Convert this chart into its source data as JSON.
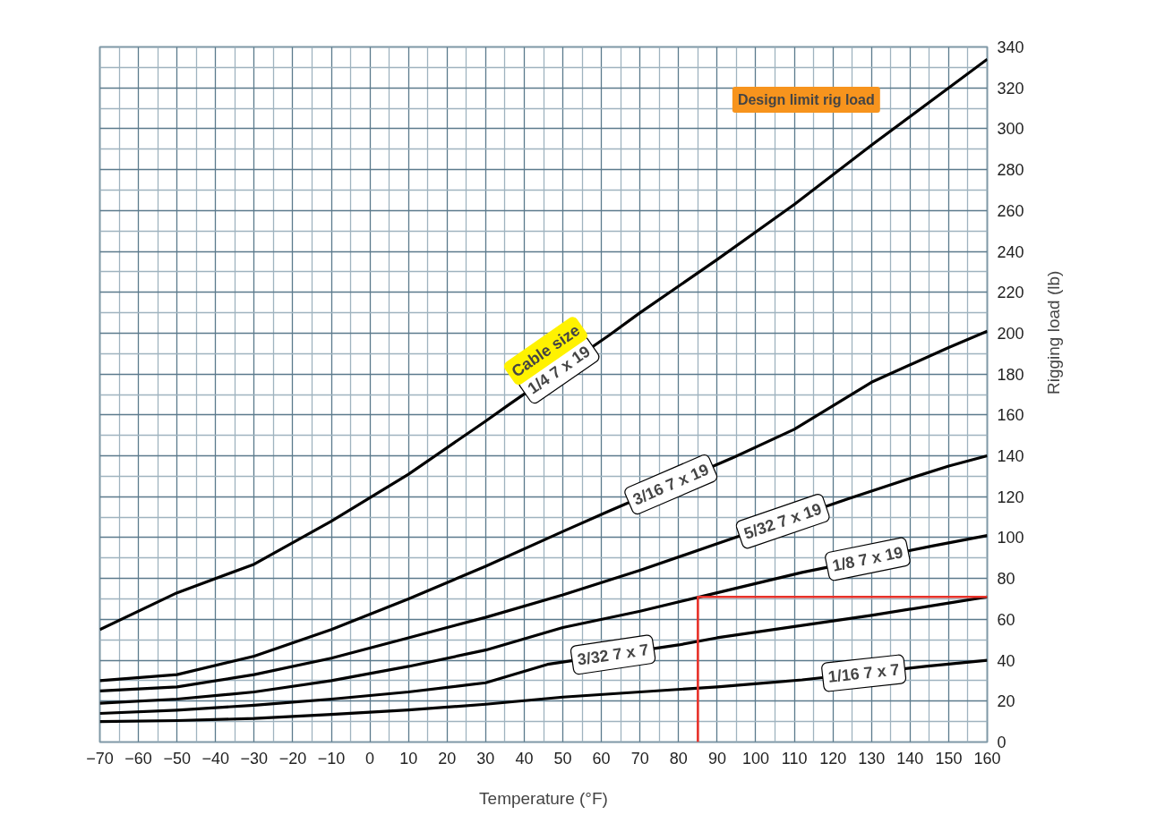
{
  "chart_data": {
    "type": "line",
    "xlabel": "Temperature (°F)",
    "ylabel": "Rigging load (lb)",
    "series": [
      {
        "name": "1/4 7 x 19",
        "color": "#000000",
        "x": [
          -70,
          -50,
          -30,
          -10,
          10,
          30,
          36,
          62,
          70,
          90,
          110,
          130,
          150,
          160
        ],
        "values": [
          55,
          73,
          87,
          108,
          131,
          157,
          165,
          199,
          210,
          236,
          263,
          292,
          320,
          334
        ]
      },
      {
        "name": "3/16 7 x 19",
        "color": "#000000",
        "x": [
          -70,
          -50,
          -30,
          -10,
          10,
          30,
          50,
          62,
          94,
          110,
          130,
          150,
          160
        ],
        "values": [
          30,
          33,
          42,
          55,
          70,
          86,
          103,
          113,
          139,
          153,
          176,
          193,
          201
        ]
      },
      {
        "name": "5/32 7 x 19",
        "color": "#000000",
        "x": [
          -70,
          -50,
          -30,
          -10,
          10,
          30,
          50,
          70,
          90,
          124,
          140,
          150,
          160
        ],
        "values": [
          25,
          27,
          33,
          41,
          51,
          61,
          72,
          84,
          97,
          119,
          129,
          135,
          140
        ]
      },
      {
        "name": "1/8 7 x 19",
        "color": "#000000",
        "x": [
          -70,
          -50,
          -30,
          -10,
          10,
          30,
          50,
          70,
          90,
          112,
          146,
          160
        ],
        "values": [
          19,
          21,
          24.5,
          30,
          37,
          45,
          56,
          64,
          73,
          83,
          96,
          101
        ]
      },
      {
        "name": "3/32 7 x 7",
        "color": "#000000",
        "x": [
          -70,
          -50,
          -30,
          -10,
          10,
          30,
          46,
          80,
          90,
          110,
          130,
          150,
          160
        ],
        "values": [
          14,
          15.6,
          18,
          21,
          24.5,
          29,
          38,
          47.5,
          51,
          56.5,
          62,
          68,
          71
        ]
      },
      {
        "name": "1/16 7 x 7",
        "color": "#000000",
        "x": [
          -70,
          -50,
          -30,
          -10,
          10,
          30,
          50,
          70,
          90,
          112,
          144,
          160
        ],
        "values": [
          10,
          10.5,
          11.5,
          13.5,
          15.7,
          18.5,
          22,
          24.5,
          27,
          30.4,
          37,
          40
        ]
      },
      {
        "type": "line",
        "color": "#e8322a",
        "x": [
          85,
          85,
          160
        ],
        "values": [
          0,
          71,
          71
        ]
      }
    ],
    "annotations": [
      "Cable size",
      {
        "text": "Design limit rig load",
        "x": 135,
        "y": 300
      }
    ],
    "xlim": [
      -70,
      160
    ],
    "ylim": [
      0,
      340
    ],
    "xticks": [
      {
        "value": -70,
        "label": "−70"
      },
      {
        "value": -60,
        "label": "−60"
      },
      {
        "value": -50,
        "label": "−50"
      },
      {
        "value": -40,
        "label": "−40"
      },
      {
        "value": -30,
        "label": "−30"
      },
      {
        "value": -20,
        "label": "−20"
      },
      {
        "value": -10,
        "label": "−10"
      },
      0,
      10,
      20,
      30,
      40,
      50,
      60,
      70,
      80,
      90,
      100,
      110,
      120,
      130,
      140,
      150,
      160
    ],
    "yticks": [
      0,
      20,
      40,
      60,
      80,
      100,
      120,
      140,
      160,
      180,
      200,
      220,
      240,
      260,
      280,
      300,
      320,
      340
    ],
    "grid": true,
    "legend": false,
    "marker": "none",
    "line_style": "solid"
  }
}
